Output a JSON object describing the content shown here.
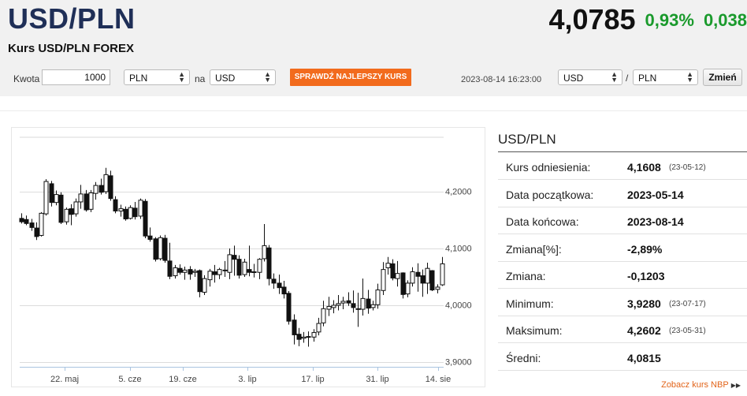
{
  "header": {
    "title": "USD/PLN",
    "subtitle": "Kurs USD/PLN FOREX",
    "rate": "4,0785",
    "change_pct": "0,93%",
    "change_abs": "0,038"
  },
  "converter": {
    "amount_label": "Kwota",
    "amount_value": "1000",
    "from_currency": "PLN",
    "na_label": "na",
    "to_currency": "USD",
    "check_button": "SPRAWDŹ NAJLEPSZY KURS",
    "datetime": "2023-08-14 16:23:00",
    "pair_base": "USD",
    "pair_separator": "/",
    "pair_quote": "PLN",
    "change_button": "Zmień"
  },
  "stats": {
    "title": "USD/PLN",
    "rows": [
      {
        "label": "Kurs odniesienia:",
        "value": "4,1608",
        "date": "(23-05-12)"
      },
      {
        "label": "Data początkowa:",
        "value": "2023-05-14",
        "date": ""
      },
      {
        "label": "Data końcowa:",
        "value": "2023-08-14",
        "date": ""
      },
      {
        "label": "Zmiana[%]:",
        "value": "-2,89%",
        "date": ""
      },
      {
        "label": "Zmiana:",
        "value": "-0,1203",
        "date": ""
      },
      {
        "label": "Minimum:",
        "value": "3,9280",
        "date": "(23-07-17)"
      },
      {
        "label": "Maksimum:",
        "value": "4,2602",
        "date": "(23-05-31)"
      },
      {
        "label": "Średni:",
        "value": "4,0815",
        "date": ""
      }
    ]
  },
  "nbp_link": "Zobacz kurs NBP",
  "colors": {
    "title": "#1f2f57",
    "positive": "#1a9a2c",
    "accent": "#f26b1d",
    "candle_down": "#111111",
    "candle_up": "#ffffff"
  },
  "chart_data": {
    "type": "candlestick",
    "x_ticks": [
      "22. maj",
      "5. cze",
      "19. cze",
      "3. lip",
      "17. lip",
      "31. lip",
      "14. sie"
    ],
    "y_ticks": [
      "4,2000",
      "4,1000",
      "4,0000",
      "3,9000"
    ],
    "ylim": [
      3.9,
      4.2
    ],
    "series": [
      {
        "open": 4.153,
        "high": 4.162,
        "low": 4.144,
        "close": 4.147
      },
      {
        "open": 4.151,
        "high": 4.158,
        "low": 4.141,
        "close": 4.144
      },
      {
        "open": 4.145,
        "high": 4.152,
        "low": 4.131,
        "close": 4.137
      },
      {
        "open": 4.136,
        "high": 4.146,
        "low": 4.115,
        "close": 4.121
      },
      {
        "open": 4.123,
        "high": 4.164,
        "low": 4.121,
        "close": 4.162
      },
      {
        "open": 4.161,
        "high": 4.222,
        "low": 4.158,
        "close": 4.218
      },
      {
        "open": 4.214,
        "high": 4.219,
        "low": 4.174,
        "close": 4.181
      },
      {
        "open": 4.181,
        "high": 4.202,
        "low": 4.176,
        "close": 4.195
      },
      {
        "open": 4.194,
        "high": 4.199,
        "low": 4.143,
        "close": 4.146
      },
      {
        "open": 4.147,
        "high": 4.172,
        "low": 4.142,
        "close": 4.169
      },
      {
        "open": 4.17,
        "high": 4.178,
        "low": 4.141,
        "close": 4.16
      },
      {
        "open": 4.161,
        "high": 4.188,
        "low": 4.156,
        "close": 4.182
      },
      {
        "open": 4.182,
        "high": 4.212,
        "low": 4.17,
        "close": 4.196
      },
      {
        "open": 4.196,
        "high": 4.203,
        "low": 4.165,
        "close": 4.168
      },
      {
        "open": 4.169,
        "high": 4.203,
        "low": 4.164,
        "close": 4.198
      },
      {
        "open": 4.197,
        "high": 4.217,
        "low": 4.186,
        "close": 4.211
      },
      {
        "open": 4.211,
        "high": 4.223,
        "low": 4.195,
        "close": 4.199
      },
      {
        "open": 4.2,
        "high": 4.242,
        "low": 4.196,
        "close": 4.23
      },
      {
        "open": 4.228,
        "high": 4.237,
        "low": 4.184,
        "close": 4.188
      },
      {
        "open": 4.186,
        "high": 4.192,
        "low": 4.162,
        "close": 4.166
      },
      {
        "open": 4.166,
        "high": 4.177,
        "low": 4.156,
        "close": 4.17
      },
      {
        "open": 4.169,
        "high": 4.174,
        "low": 4.149,
        "close": 4.152
      },
      {
        "open": 4.153,
        "high": 4.176,
        "low": 4.151,
        "close": 4.172
      },
      {
        "open": 4.171,
        "high": 4.182,
        "low": 4.151,
        "close": 4.156
      },
      {
        "open": 4.157,
        "high": 4.188,
        "low": 4.152,
        "close": 4.185
      },
      {
        "open": 4.183,
        "high": 4.187,
        "low": 4.118,
        "close": 4.122
      },
      {
        "open": 4.122,
        "high": 4.137,
        "low": 4.112,
        "close": 4.116
      },
      {
        "open": 4.117,
        "high": 4.12,
        "low": 4.077,
        "close": 4.081
      },
      {
        "open": 4.082,
        "high": 4.123,
        "low": 4.079,
        "close": 4.119
      },
      {
        "open": 4.118,
        "high": 4.124,
        "low": 4.075,
        "close": 4.079
      },
      {
        "open": 4.078,
        "high": 4.11,
        "low": 4.046,
        "close": 4.051
      },
      {
        "open": 4.052,
        "high": 4.071,
        "low": 4.047,
        "close": 4.066
      },
      {
        "open": 4.065,
        "high": 4.072,
        "low": 4.054,
        "close": 4.058
      },
      {
        "open": 4.058,
        "high": 4.068,
        "low": 4.045,
        "close": 4.062
      },
      {
        "open": 4.063,
        "high": 4.069,
        "low": 4.045,
        "close": 4.055
      },
      {
        "open": 4.058,
        "high": 4.064,
        "low": 4.05,
        "close": 4.06
      },
      {
        "open": 4.061,
        "high": 4.063,
        "low": 4.014,
        "close": 4.024
      },
      {
        "open": 4.023,
        "high": 4.053,
        "low": 4.018,
        "close": 4.047
      },
      {
        "open": 4.045,
        "high": 4.064,
        "low": 4.033,
        "close": 4.06
      },
      {
        "open": 4.059,
        "high": 4.071,
        "low": 4.04,
        "close": 4.054
      },
      {
        "open": 4.054,
        "high": 4.066,
        "low": 4.046,
        "close": 4.063
      },
      {
        "open": 4.062,
        "high": 4.078,
        "low": 4.05,
        "close": 4.061
      },
      {
        "open": 4.058,
        "high": 4.1,
        "low": 4.046,
        "close": 4.089
      },
      {
        "open": 4.088,
        "high": 4.105,
        "low": 4.052,
        "close": 4.081
      },
      {
        "open": 4.081,
        "high": 4.088,
        "low": 4.047,
        "close": 4.053
      },
      {
        "open": 4.054,
        "high": 4.082,
        "low": 4.05,
        "close": 4.076
      },
      {
        "open": 4.063,
        "high": 4.105,
        "low": 4.051,
        "close": 4.058
      },
      {
        "open": 4.059,
        "high": 4.073,
        "low": 4.049,
        "close": 4.058
      },
      {
        "open": 4.058,
        "high": 4.083,
        "low": 4.046,
        "close": 4.081
      },
      {
        "open": 4.082,
        "high": 4.143,
        "low": 4.077,
        "close": 4.105
      },
      {
        "open": 4.101,
        "high": 4.106,
        "low": 4.035,
        "close": 4.047
      },
      {
        "open": 4.046,
        "high": 4.056,
        "low": 4.029,
        "close": 4.039
      },
      {
        "open": 4.039,
        "high": 4.054,
        "low": 4.02,
        "close": 4.031
      },
      {
        "open": 4.032,
        "high": 4.043,
        "low": 4.012,
        "close": 4.02
      },
      {
        "open": 4.021,
        "high": 4.025,
        "low": 3.966,
        "close": 3.972
      },
      {
        "open": 3.974,
        "high": 3.984,
        "low": 3.931,
        "close": 3.948
      },
      {
        "open": 3.949,
        "high": 3.96,
        "low": 3.928,
        "close": 3.94
      },
      {
        "open": 3.942,
        "high": 3.953,
        "low": 3.934,
        "close": 3.944
      },
      {
        "open": 3.945,
        "high": 3.954,
        "low": 3.927,
        "close": 3.944
      },
      {
        "open": 3.944,
        "high": 3.958,
        "low": 3.936,
        "close": 3.952
      },
      {
        "open": 3.953,
        "high": 3.978,
        "low": 3.947,
        "close": 3.968
      },
      {
        "open": 3.969,
        "high": 4.008,
        "low": 3.963,
        "close": 3.994
      },
      {
        "open": 3.993,
        "high": 4.015,
        "low": 3.981,
        "close": 3.998
      },
      {
        "open": 3.996,
        "high": 4.009,
        "low": 3.986,
        "close": 4.0
      },
      {
        "open": 4.0,
        "high": 4.018,
        "low": 3.991,
        "close": 4.003
      },
      {
        "open": 4.004,
        "high": 4.015,
        "low": 3.993,
        "close": 4.007
      },
      {
        "open": 4.008,
        "high": 4.023,
        "low": 3.999,
        "close": 4.004
      },
      {
        "open": 4.003,
        "high": 4.026,
        "low": 3.987,
        "close": 3.996
      },
      {
        "open": 3.994,
        "high": 4.022,
        "low": 3.962,
        "close": 3.993
      },
      {
        "open": 3.993,
        "high": 4.047,
        "low": 3.982,
        "close": 4.012
      },
      {
        "open": 4.011,
        "high": 4.027,
        "low": 3.985,
        "close": 3.995
      },
      {
        "open": 3.996,
        "high": 4.008,
        "low": 3.991,
        "close": 4.001
      },
      {
        "open": 4.001,
        "high": 4.038,
        "low": 3.994,
        "close": 4.027
      },
      {
        "open": 4.026,
        "high": 4.076,
        "low": 4.018,
        "close": 4.063
      },
      {
        "open": 4.066,
        "high": 4.085,
        "low": 4.054,
        "close": 4.074
      },
      {
        "open": 4.073,
        "high": 4.081,
        "low": 4.044,
        "close": 4.048
      },
      {
        "open": 4.047,
        "high": 4.078,
        "low": 4.033,
        "close": 4.056
      },
      {
        "open": 4.057,
        "high": 4.058,
        "low": 4.012,
        "close": 4.019
      },
      {
        "open": 4.02,
        "high": 4.044,
        "low": 4.014,
        "close": 4.039
      },
      {
        "open": 4.039,
        "high": 4.067,
        "low": 4.033,
        "close": 4.059
      },
      {
        "open": 4.058,
        "high": 4.074,
        "low": 4.024,
        "close": 4.051
      },
      {
        "open": 4.052,
        "high": 4.063,
        "low": 4.015,
        "close": 4.039
      },
      {
        "open": 4.039,
        "high": 4.075,
        "low": 4.02,
        "close": 4.065
      },
      {
        "open": 4.061,
        "high": 4.062,
        "low": 4.025,
        "close": 4.027
      },
      {
        "open": 4.028,
        "high": 4.037,
        "low": 4.021,
        "close": 4.032
      },
      {
        "open": 4.036,
        "high": 4.085,
        "low": 4.034,
        "close": 4.073
      }
    ]
  }
}
